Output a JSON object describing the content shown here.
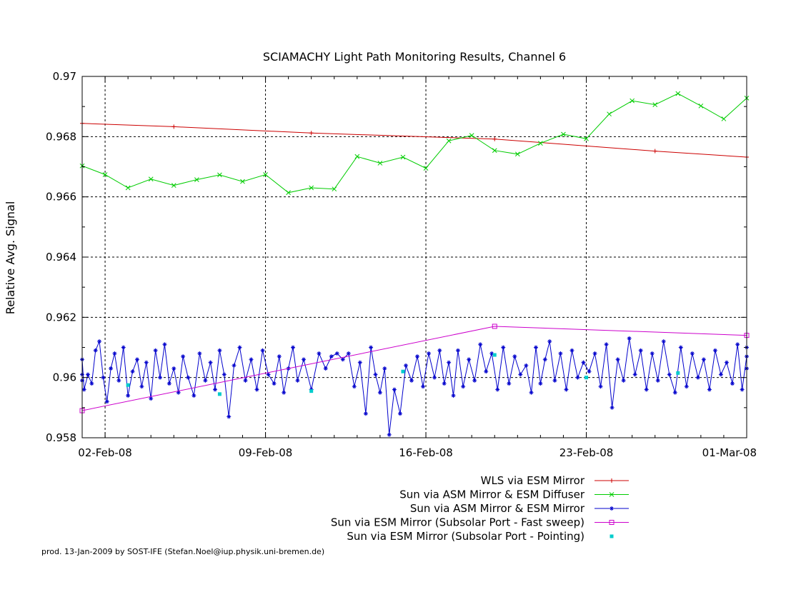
{
  "chart_data": {
    "type": "line",
    "title": "SCIAMACHY Light Path Monitoring Results, Channel 6",
    "xlabel": "",
    "ylabel": "Relative Avg. Signal",
    "x_axis_type": "date",
    "xlim": [
      "2008-02-01",
      "2008-03-01"
    ],
    "ylim": [
      0.958,
      0.97
    ],
    "x_ticks": [
      "2008-02-02",
      "2008-02-09",
      "2008-02-16",
      "2008-02-23",
      "2008-03-01"
    ],
    "x_tick_labels": [
      "02-Feb-08",
      "09-Feb-08",
      "16-Feb-08",
      "23-Feb-08",
      "01-Mar-08"
    ],
    "y_ticks": [
      0.958,
      0.96,
      0.962,
      0.964,
      0.966,
      0.968,
      0.97
    ],
    "y_tick_labels": [
      "0.958",
      "0.96",
      "0.962",
      "0.964",
      "0.966",
      "0.968",
      "0.97"
    ],
    "grid": true,
    "legend_position": "bottom-right",
    "series": [
      {
        "name": "WLS via ESM Mirror",
        "color": "#cc0000",
        "marker": "plus",
        "style": "line",
        "points": [
          [
            "2008-02-01",
            0.96844
          ],
          [
            "2008-02-05",
            0.96833
          ],
          [
            "2008-02-11",
            0.96812
          ],
          [
            "2008-02-19",
            0.96792
          ],
          [
            "2008-02-26",
            0.96752
          ],
          [
            "2008-03-01",
            0.96732
          ]
        ]
      },
      {
        "name": "Sun via ASM Mirror & ESM Diffuser",
        "color": "#00cc00",
        "marker": "x",
        "style": "line",
        "points": [
          [
            "2008-02-01",
            0.96703
          ],
          [
            "2008-02-02",
            0.96674
          ],
          [
            "2008-02-03",
            0.9663
          ],
          [
            "2008-02-04",
            0.96659
          ],
          [
            "2008-02-05",
            0.96638
          ],
          [
            "2008-02-06",
            0.96657
          ],
          [
            "2008-02-07",
            0.96673
          ],
          [
            "2008-02-08",
            0.96651
          ],
          [
            "2008-02-09",
            0.96674
          ],
          [
            "2008-02-10",
            0.96614
          ],
          [
            "2008-02-11",
            0.9663
          ],
          [
            "2008-02-12",
            0.96626
          ],
          [
            "2008-02-13",
            0.96734
          ],
          [
            "2008-02-14",
            0.96712
          ],
          [
            "2008-02-15",
            0.96732
          ],
          [
            "2008-02-16",
            0.96695
          ],
          [
            "2008-02-17",
            0.96786
          ],
          [
            "2008-02-18",
            0.96804
          ],
          [
            "2008-02-19",
            0.96754
          ],
          [
            "2008-02-20",
            0.96742
          ],
          [
            "2008-02-21",
            0.96778
          ],
          [
            "2008-02-22",
            0.96808
          ],
          [
            "2008-02-23",
            0.96793
          ],
          [
            "2008-02-24",
            0.96875
          ],
          [
            "2008-02-25",
            0.96919
          ],
          [
            "2008-02-26",
            0.96906
          ],
          [
            "2008-02-27",
            0.96943
          ],
          [
            "2008-02-28",
            0.96902
          ],
          [
            "2008-02-29",
            0.96859
          ],
          [
            "2008-03-01",
            0.96928
          ]
        ]
      },
      {
        "name": "Sun via ASM Mirror & ESM Mirror",
        "color": "#0000cc",
        "marker": "star",
        "style": "line",
        "points": [
          [
            "2008-02-01",
            0.9601
          ],
          [
            "2008-02-01",
            0.9599
          ],
          [
            "2008-02-01",
            0.9606
          ],
          [
            "2008-02-01",
            0.9596
          ],
          [
            "2008-02-01",
            0.9601
          ],
          [
            "2008-02-01",
            0.9598
          ],
          [
            "2008-02-02",
            0.9609
          ],
          [
            "2008-02-02",
            0.9612
          ],
          [
            "2008-02-02",
            0.96
          ],
          [
            "2008-02-02",
            0.9592
          ],
          [
            "2008-02-02",
            0.9603
          ],
          [
            "2008-02-02",
            0.9608
          ],
          [
            "2008-02-03",
            0.9599
          ],
          [
            "2008-02-03",
            0.961
          ],
          [
            "2008-02-03",
            0.9594
          ],
          [
            "2008-02-03",
            0.9602
          ],
          [
            "2008-02-03",
            0.9606
          ],
          [
            "2008-02-04",
            0.9597
          ],
          [
            "2008-02-04",
            0.9605
          ],
          [
            "2008-02-04",
            0.9593
          ],
          [
            "2008-02-04",
            0.9609
          ],
          [
            "2008-02-04",
            0.96
          ],
          [
            "2008-02-05",
            0.9611
          ],
          [
            "2008-02-05",
            0.9598
          ],
          [
            "2008-02-05",
            0.9603
          ],
          [
            "2008-02-05",
            0.9595
          ],
          [
            "2008-02-05",
            0.9607
          ],
          [
            "2008-02-06",
            0.96
          ],
          [
            "2008-02-06",
            0.9594
          ],
          [
            "2008-02-06",
            0.9608
          ],
          [
            "2008-02-06",
            0.9599
          ],
          [
            "2008-02-07",
            0.9605
          ],
          [
            "2008-02-07",
            0.9596
          ],
          [
            "2008-02-07",
            0.9609
          ],
          [
            "2008-02-07",
            0.9601
          ],
          [
            "2008-02-07",
            0.9587
          ],
          [
            "2008-02-08",
            0.9604
          ],
          [
            "2008-02-08",
            0.961
          ],
          [
            "2008-02-08",
            0.9599
          ],
          [
            "2008-02-08",
            0.9606
          ],
          [
            "2008-02-09",
            0.9596
          ],
          [
            "2008-02-09",
            0.9609
          ],
          [
            "2008-02-09",
            0.9601
          ],
          [
            "2008-02-09",
            0.9598
          ],
          [
            "2008-02-10",
            0.9607
          ],
          [
            "2008-02-10",
            0.9595
          ],
          [
            "2008-02-10",
            0.9603
          ],
          [
            "2008-02-10",
            0.961
          ],
          [
            "2008-02-10",
            0.9599
          ],
          [
            "2008-02-11",
            0.9606
          ],
          [
            "2008-02-11",
            0.9596
          ],
          [
            "2008-02-11",
            0.9608
          ],
          [
            "2008-02-12",
            0.9603
          ],
          [
            "2008-02-12",
            0.9607
          ],
          [
            "2008-02-12",
            0.9608
          ],
          [
            "2008-02-12",
            0.9606
          ],
          [
            "2008-02-13",
            0.9608
          ],
          [
            "2008-02-13",
            0.9597
          ],
          [
            "2008-02-13",
            0.9605
          ],
          [
            "2008-02-13",
            0.9588
          ],
          [
            "2008-02-14",
            0.961
          ],
          [
            "2008-02-14",
            0.9601
          ],
          [
            "2008-02-14",
            0.9595
          ],
          [
            "2008-02-14",
            0.9603
          ],
          [
            "2008-02-14",
            0.9581
          ],
          [
            "2008-02-15",
            0.9596
          ],
          [
            "2008-02-15",
            0.9588
          ],
          [
            "2008-02-15",
            0.9604
          ],
          [
            "2008-02-15",
            0.9599
          ],
          [
            "2008-02-16",
            0.9607
          ],
          [
            "2008-02-16",
            0.9597
          ],
          [
            "2008-02-16",
            0.9608
          ],
          [
            "2008-02-16",
            0.96
          ],
          [
            "2008-02-17",
            0.9609
          ],
          [
            "2008-02-17",
            0.9598
          ],
          [
            "2008-02-17",
            0.9605
          ],
          [
            "2008-02-17",
            0.9594
          ],
          [
            "2008-02-17",
            0.9609
          ],
          [
            "2008-02-18",
            0.9597
          ],
          [
            "2008-02-18",
            0.9606
          ],
          [
            "2008-02-18",
            0.9599
          ],
          [
            "2008-02-18",
            0.9611
          ],
          [
            "2008-02-19",
            0.9602
          ],
          [
            "2008-02-19",
            0.9608
          ],
          [
            "2008-02-19",
            0.9596
          ],
          [
            "2008-02-19",
            0.961
          ],
          [
            "2008-02-20",
            0.9598
          ],
          [
            "2008-02-20",
            0.9607
          ],
          [
            "2008-02-20",
            0.9601
          ],
          [
            "2008-02-20",
            0.9604
          ],
          [
            "2008-02-21",
            0.9595
          ],
          [
            "2008-02-21",
            0.961
          ],
          [
            "2008-02-21",
            0.9598
          ],
          [
            "2008-02-21",
            0.9606
          ],
          [
            "2008-02-21",
            0.9612
          ],
          [
            "2008-02-22",
            0.9599
          ],
          [
            "2008-02-22",
            0.9608
          ],
          [
            "2008-02-22",
            0.9596
          ],
          [
            "2008-02-22",
            0.9609
          ],
          [
            "2008-02-23",
            0.96
          ],
          [
            "2008-02-23",
            0.9605
          ],
          [
            "2008-02-23",
            0.9602
          ],
          [
            "2008-02-23",
            0.9608
          ],
          [
            "2008-02-24",
            0.9597
          ],
          [
            "2008-02-24",
            0.9611
          ],
          [
            "2008-02-24",
            0.959
          ],
          [
            "2008-02-24",
            0.9606
          ],
          [
            "2008-02-25",
            0.9599
          ],
          [
            "2008-02-25",
            0.9613
          ],
          [
            "2008-02-25",
            0.9601
          ],
          [
            "2008-02-25",
            0.9609
          ],
          [
            "2008-02-26",
            0.9596
          ],
          [
            "2008-02-26",
            0.9608
          ],
          [
            "2008-02-26",
            0.9599
          ],
          [
            "2008-02-26",
            0.9612
          ],
          [
            "2008-02-27",
            0.9601
          ],
          [
            "2008-02-27",
            0.9595
          ],
          [
            "2008-02-27",
            0.961
          ],
          [
            "2008-02-27",
            0.9597
          ],
          [
            "2008-02-28",
            0.9608
          ],
          [
            "2008-02-28",
            0.96
          ],
          [
            "2008-02-28",
            0.9606
          ],
          [
            "2008-02-28",
            0.9596
          ],
          [
            "2008-02-29",
            0.9609
          ],
          [
            "2008-02-29",
            0.9601
          ],
          [
            "2008-02-29",
            0.9605
          ],
          [
            "2008-02-29",
            0.9598
          ],
          [
            "2008-03-01",
            0.9611
          ],
          [
            "2008-03-01",
            0.9596
          ],
          [
            "2008-03-01",
            0.9607
          ],
          [
            "2008-03-01",
            0.9603
          ],
          [
            "2008-03-01",
            0.961
          ]
        ]
      },
      {
        "name": "Sun via ESM Mirror (Subsolar Port - Fast sweep)",
        "color": "#cc00cc",
        "marker": "square",
        "style": "line",
        "points": [
          [
            "2008-02-01",
            0.9589
          ],
          [
            "2008-02-19",
            0.9617
          ],
          [
            "2008-03-01",
            0.9614
          ]
        ]
      },
      {
        "name": "Sun via ESM Mirror (Subsolar Port - Pointing)",
        "color": "#00cccc",
        "marker": "filled-square",
        "style": "points",
        "points": [
          [
            "2008-02-03",
            0.95975
          ],
          [
            "2008-02-07",
            0.95945
          ],
          [
            "2008-02-11",
            0.95955
          ],
          [
            "2008-02-15",
            0.9602
          ],
          [
            "2008-02-19",
            0.96075
          ],
          [
            "2008-02-23",
            0.96
          ],
          [
            "2008-02-27",
            0.96015
          ]
        ]
      }
    ]
  },
  "footer": "prod. 13-Jan-2009 by SOST-IFE (Stefan.Noel@iup.physik.uni-bremen.de)"
}
